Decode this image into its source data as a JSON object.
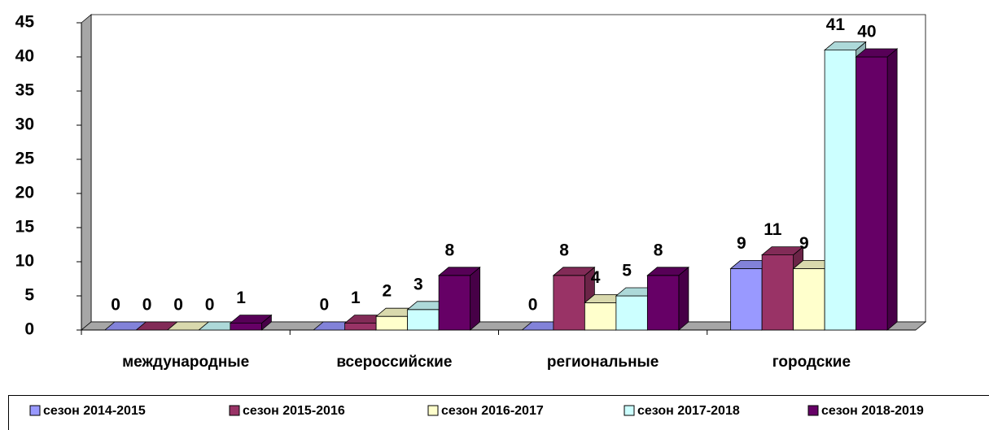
{
  "chart_data": {
    "type": "bar",
    "categories": [
      "международные",
      "всероссийские",
      "региональные",
      "городские"
    ],
    "series": [
      {
        "name": "сезон 2014-2015",
        "color": "#9999ff",
        "values": [
          0,
          0,
          0,
          9
        ]
      },
      {
        "name": "сезон 2015-2016",
        "color": "#993366",
        "values": [
          0,
          1,
          8,
          11
        ]
      },
      {
        "name": "сезон 2016-2017",
        "color": "#ffffcc",
        "values": [
          0,
          2,
          4,
          9
        ]
      },
      {
        "name": "сезон 2017-2018",
        "color": "#ccffff",
        "values": [
          0,
          3,
          5,
          41
        ]
      },
      {
        "name": "сезон 2018-2019",
        "color": "#660066",
        "values": [
          1,
          8,
          8,
          40
        ]
      }
    ],
    "ylim": [
      0,
      45
    ],
    "yticks": [
      0,
      5,
      10,
      15,
      20,
      25,
      30,
      35,
      40,
      45
    ],
    "legend": "bottom",
    "three_d": true
  }
}
